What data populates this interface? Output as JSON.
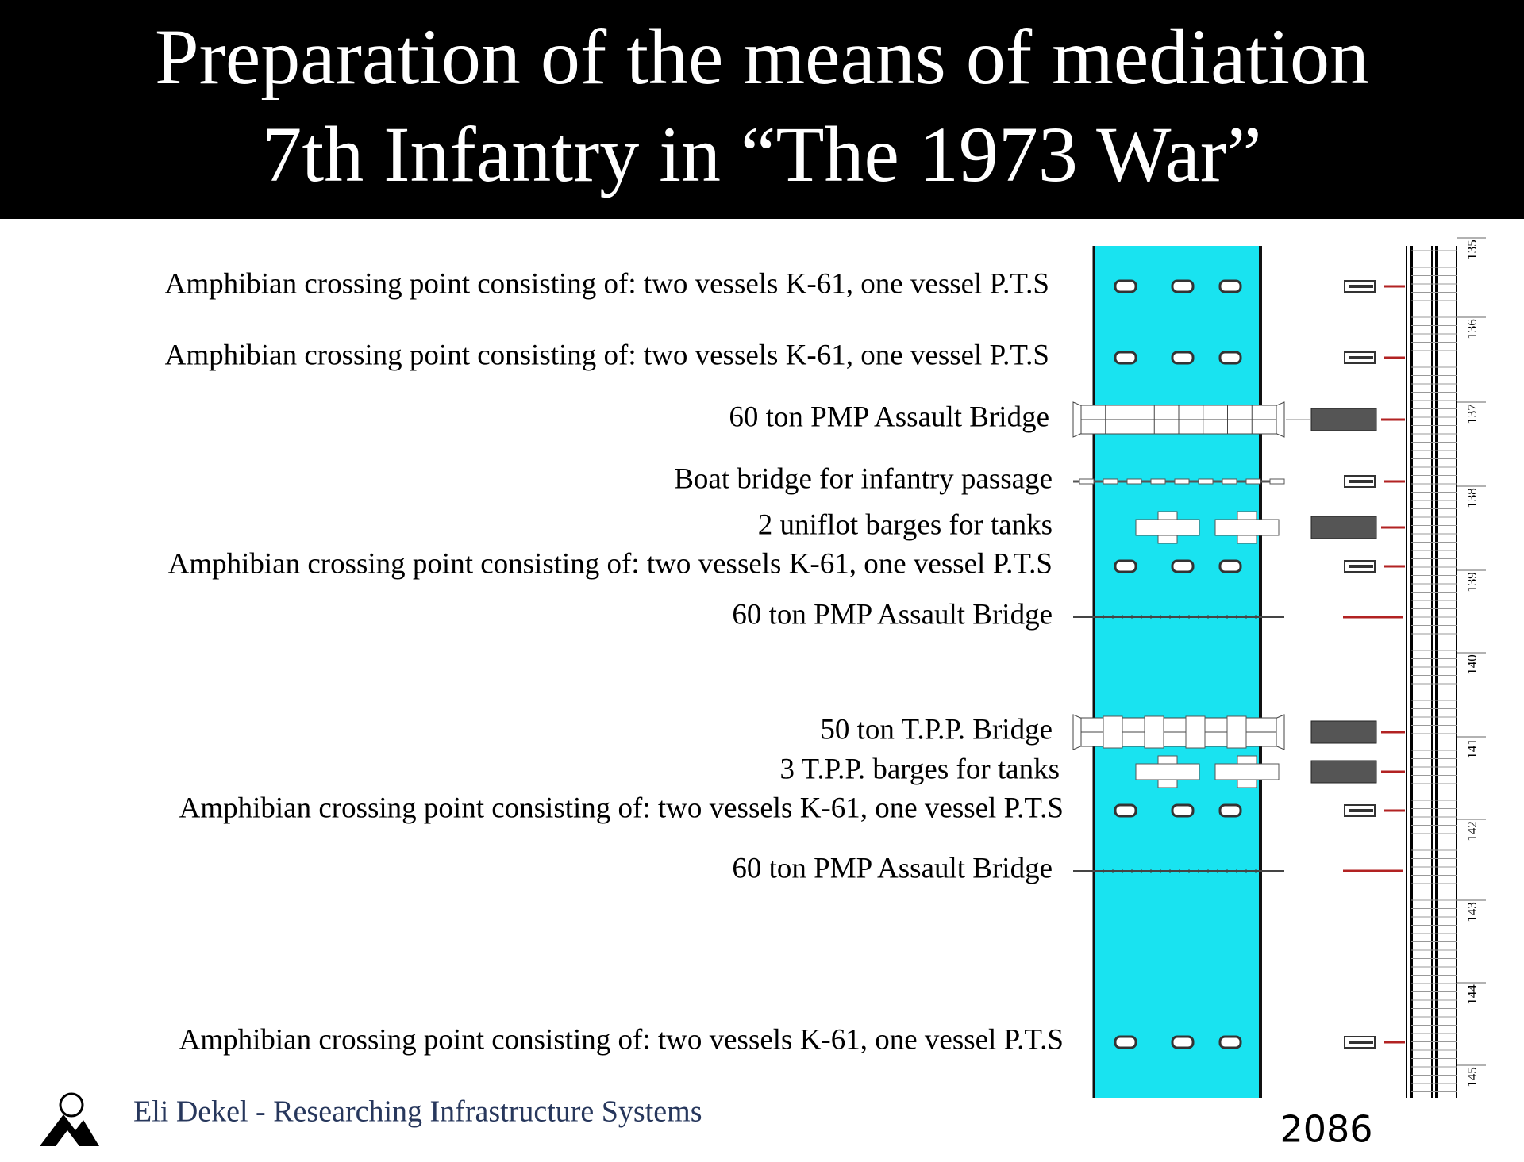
{
  "header": {
    "title": [
      "Preparation of the means of mediation",
      "7th Infantry in “The 1973 War”"
    ]
  },
  "labels": [
    "Amphibian crossing point consisting of: two vessels K-61, one vessel P.T.S",
    "Amphibian crossing point consisting of: two vessels K-61, one vessel P.T.S",
    "60 ton PMP Assault Bridge",
    "Boat bridge for infantry passage",
    "2 uniflot barges for tanks",
    "Amphibian crossing point consisting of: two vessels K-61, one vessel P.T.S",
    "60 ton PMP Assault Bridge",
    "50 ton T.P.P. Bridge",
    "3 T.P.P. barges for tanks",
    "Amphibian crossing point consisting of: two vessels K-61, one vessel P.T.S",
    "60 ton PMP Assault Bridge",
    "Amphibian crossing point consisting of: two vessels K-61, one vessel P.T.S"
  ],
  "scale": {
    "km": [
      "135",
      "136",
      "137",
      "138",
      "139",
      "140",
      "141",
      "142",
      "143",
      "144",
      "145"
    ]
  },
  "footer": {
    "author": "Eli Dekel - Researching Infrastructure Systems",
    "page": "2086"
  }
}
